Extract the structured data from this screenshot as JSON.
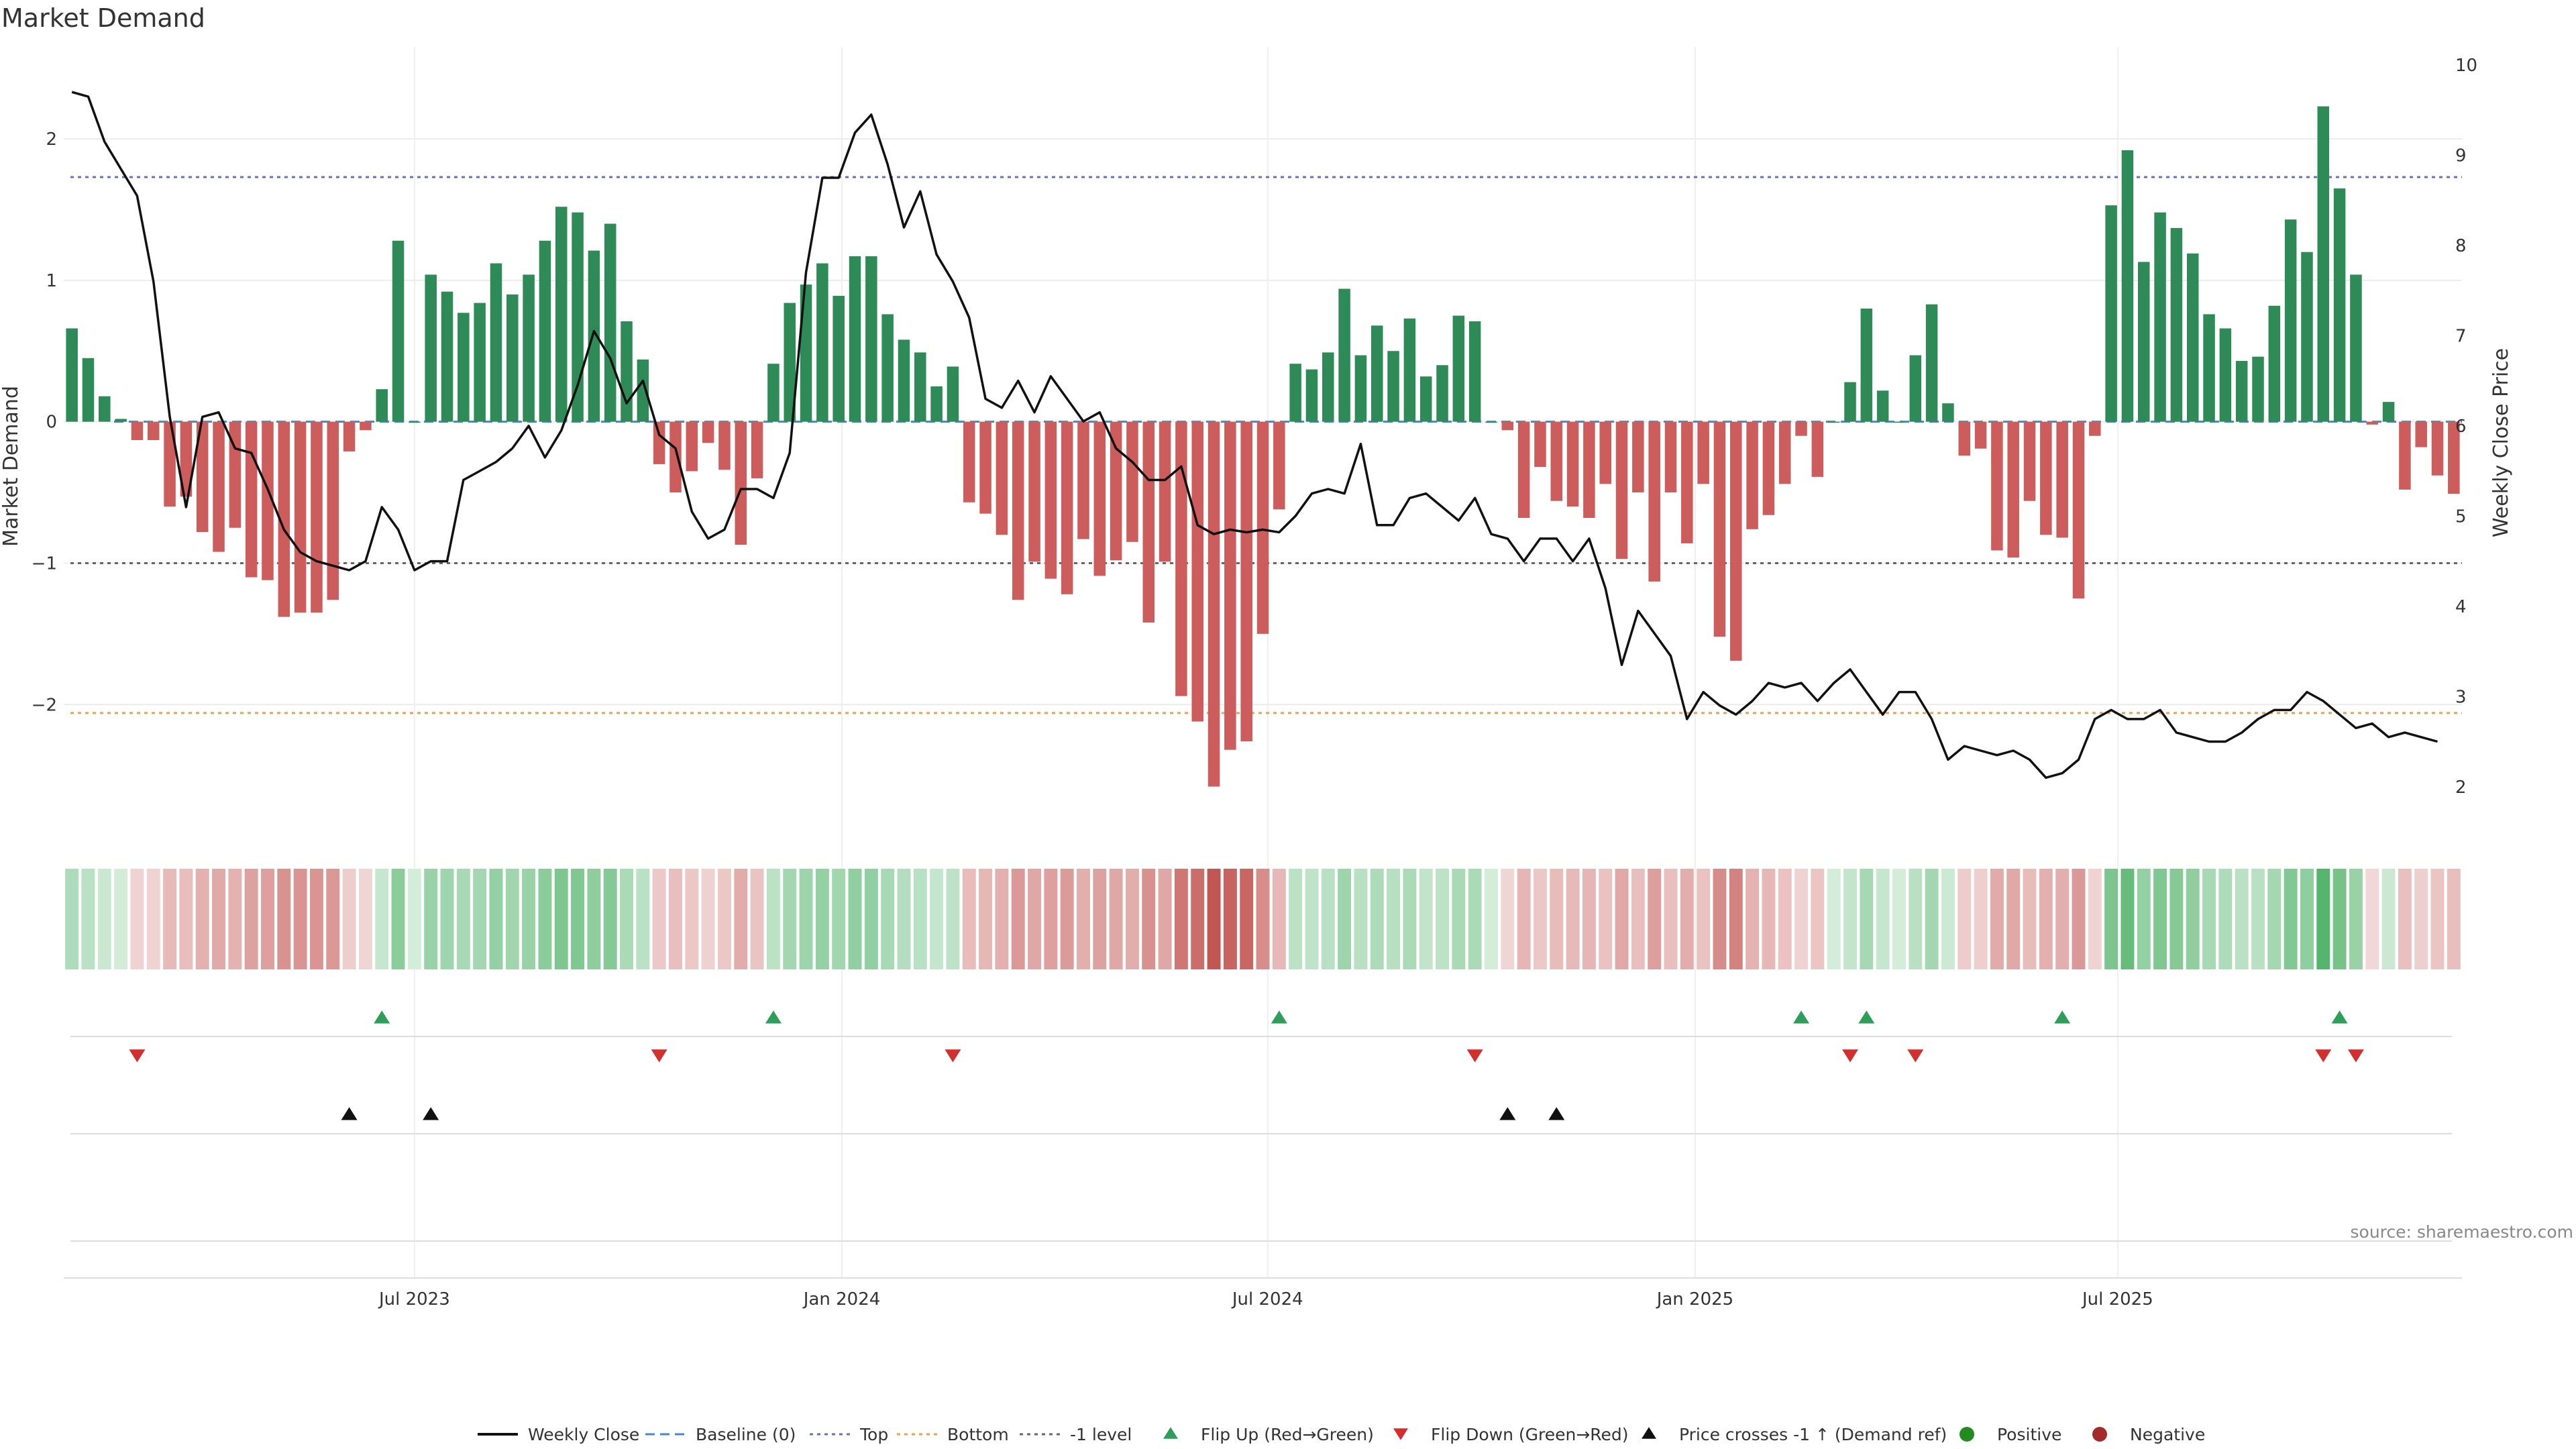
{
  "chart_data": {
    "type": "bar",
    "title": "Market Demand",
    "ylabel_left": "Market Demand",
    "ylabel_right": "Weekly Close Price",
    "ylim_left": [
      -2.9,
      2.65
    ],
    "ylim_right": [
      1.5,
      10.2
    ],
    "left_ticks": [
      2,
      1,
      0,
      -1,
      -2
    ],
    "left_tick_labels": [
      "2",
      "1",
      "0",
      "−1",
      "−2"
    ],
    "right_ticks": [
      10,
      9,
      8,
      7,
      6,
      5,
      4,
      3,
      2
    ],
    "right_tick_labels": [
      "10",
      "9",
      "8",
      "7",
      "6",
      "5",
      "4",
      "3",
      "2"
    ],
    "x_tick_labels": [
      {
        "label": "Jul 2023",
        "week": 21.5
      },
      {
        "label": "Jan 2024",
        "week": 47.7
      },
      {
        "label": "Jul 2024",
        "week": 73.8
      },
      {
        "label": "Jan 2025",
        "week": 100.0
      },
      {
        "label": "Jul 2025",
        "week": 125.9
      }
    ],
    "reference_lines": [
      {
        "name": "Top",
        "value": 1.73,
        "color": "#6a6fbd"
      },
      {
        "name": "Bottom",
        "value": -2.06,
        "color": "#e8a24e"
      },
      {
        "name": "-1 level",
        "value": -1.0,
        "color": "#666666"
      },
      {
        "name": "Baseline (0)",
        "value": 0.0,
        "color": "#4a86c5"
      }
    ],
    "series": [
      {
        "name": "Market Demand",
        "values": [
          0.66,
          0.45,
          0.18,
          0.02,
          -0.13,
          -0.13,
          -0.6,
          -0.53,
          -0.78,
          -0.92,
          -0.75,
          -1.1,
          -1.12,
          -1.38,
          -1.35,
          -1.35,
          -1.26,
          -0.21,
          -0.06,
          0.23,
          1.28,
          0.0,
          1.04,
          0.92,
          0.77,
          0.84,
          1.12,
          0.9,
          1.04,
          1.28,
          1.52,
          1.48,
          1.21,
          1.4,
          0.71,
          0.44,
          -0.3,
          -0.5,
          -0.35,
          -0.15,
          -0.34,
          -0.87,
          -0.4,
          0.41,
          0.84,
          0.97,
          1.12,
          0.89,
          1.17,
          1.17,
          0.76,
          0.58,
          0.49,
          0.25,
          0.39,
          -0.57,
          -0.65,
          -0.8,
          -1.26,
          -0.99,
          -1.11,
          -1.22,
          -0.83,
          -1.09,
          -0.98,
          -0.85,
          -1.42,
          -0.99,
          -1.94,
          -2.12,
          -2.58,
          -2.32,
          -2.26,
          -1.5,
          -0.62,
          0.41,
          0.37,
          0.49,
          0.94,
          0.47,
          0.68,
          0.5,
          0.73,
          0.32,
          0.4,
          0.75,
          0.71,
          0.0,
          -0.06,
          -0.68,
          -0.32,
          -0.56,
          -0.6,
          -0.68,
          -0.44,
          -0.97,
          -0.5,
          -1.13,
          -0.5,
          -0.86,
          -0.44,
          -1.52,
          -1.69,
          -0.76,
          -0.66,
          -0.44,
          -0.1,
          -0.39,
          0.0,
          0.28,
          0.8,
          0.22,
          0.0,
          0.47,
          0.83,
          0.13,
          -0.24,
          -0.19,
          -0.91,
          -0.96,
          -0.56,
          -0.8,
          -0.82,
          -1.25,
          -0.1,
          1.53,
          1.92,
          1.13,
          1.48,
          1.37,
          1.19,
          0.76,
          0.66,
          0.43,
          0.46,
          0.82,
          1.43,
          1.2,
          2.23,
          1.65,
          1.04,
          -0.02,
          0.14,
          -0.48,
          -0.18,
          -0.38,
          -0.51
        ]
      },
      {
        "name": "Weekly Close",
        "values": [
          9.7,
          9.65,
          9.15,
          8.85,
          8.55,
          7.6,
          6.1,
          5.1,
          6.1,
          6.15,
          5.75,
          5.7,
          5.3,
          4.85,
          4.6,
          4.5,
          4.45,
          4.4,
          4.5,
          5.1,
          4.85,
          4.4,
          4.5,
          4.5,
          5.4,
          5.5,
          5.6,
          5.75,
          6.0,
          5.65,
          5.95,
          6.45,
          7.05,
          6.75,
          6.25,
          6.5,
          5.9,
          5.75,
          5.05,
          4.75,
          4.85,
          5.3,
          5.3,
          5.2,
          5.7,
          7.7,
          8.75,
          8.75,
          9.25,
          9.45,
          8.9,
          8.2,
          8.6,
          7.9,
          7.6,
          7.2,
          6.3,
          6.2,
          6.5,
          6.15,
          6.55,
          6.3,
          6.05,
          6.15,
          5.75,
          5.6,
          5.4,
          5.4,
          5.55,
          4.9,
          4.8,
          4.85,
          4.82,
          4.85,
          4.82,
          5.0,
          5.25,
          5.3,
          5.25,
          5.8,
          4.9,
          4.9,
          5.2,
          5.25,
          5.1,
          4.95,
          5.2,
          4.8,
          4.75,
          4.5,
          4.75,
          4.75,
          4.5,
          4.75,
          4.2,
          3.35,
          3.95,
          3.7,
          3.45,
          2.75,
          3.05,
          2.9,
          2.8,
          2.95,
          3.15,
          3.1,
          3.15,
          2.95,
          3.15,
          3.3,
          3.05,
          2.8,
          3.05,
          3.05,
          2.75,
          2.3,
          2.45,
          2.4,
          2.35,
          2.4,
          2.3,
          2.1,
          2.15,
          2.3,
          2.75,
          2.85,
          2.75,
          2.75,
          2.85,
          2.6,
          2.55,
          2.5,
          2.5,
          2.6,
          2.75,
          2.85,
          2.85,
          3.05,
          2.95,
          2.8,
          2.65,
          2.7,
          2.55,
          2.6,
          2.55,
          2.5
        ]
      }
    ],
    "flip_up_weeks": [
      19,
      43,
      74,
      106,
      110,
      122,
      139
    ],
    "flip_down_weeks": [
      4,
      36,
      54,
      86,
      109,
      113,
      138,
      140
    ],
    "price_cross_weeks": [
      17,
      22,
      88,
      91
    ],
    "legend_placement": "bottom-center",
    "legend": [
      "Weekly Close",
      "Baseline (0)",
      "Top",
      "Bottom",
      "-1 level",
      "Flip Up (Red→Green)",
      "Flip Down (Green→Red)",
      "Price crosses -1 ↑ (Demand ref)",
      "Positive",
      "Negative"
    ],
    "colors": {
      "positive_bar": "#2e8b57",
      "negative_bar": "#cd5c5c",
      "price_line": "#111111",
      "flip_up": "#2e9e5a",
      "flip_down": "#d32f2f",
      "price_cross": "#111111",
      "positive_dot": "#228b22",
      "negative_dot": "#a52a2a"
    },
    "grid": true
  },
  "source": "source: sharemaestro.com"
}
